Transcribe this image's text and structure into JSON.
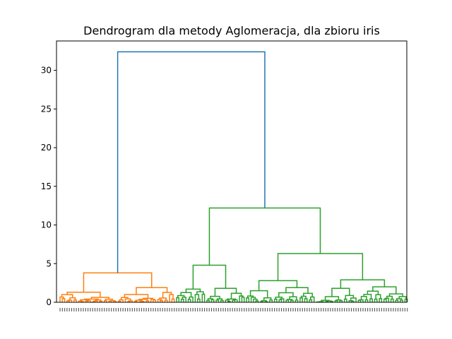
{
  "chart_data": {
    "type": "dendrogram",
    "title": "Dendrogram dla metody Aglomeracja, dla zbioru iris",
    "xlabel": "",
    "ylabel": "",
    "ylim": [
      0,
      33.8
    ],
    "yticks": [
      0,
      5,
      10,
      15,
      20,
      25,
      30
    ],
    "leaf_count": 150,
    "leaf_label_examples": [
      "1",
      "2",
      "3",
      "4",
      "5",
      "6",
      "7",
      "8",
      "9",
      "10"
    ],
    "colors": {
      "root": "#1f77b4",
      "cluster_1": "#ff7f0e",
      "cluster_2": "#2ca02c",
      "axes": "#000000"
    },
    "top_links": [
      {
        "name": "root",
        "height": 32.4,
        "color": "root",
        "left_child": "cluster_1",
        "right_child": "cluster_2"
      },
      {
        "name": "cluster_1",
        "height": 3.8,
        "color": "cluster_1",
        "leaves": [
          0,
          50
        ]
      },
      {
        "name": "cluster_2",
        "height": 12.2,
        "color": "cluster_2",
        "leaves": [
          50,
          150
        ]
      },
      {
        "name": "cluster_2a",
        "height": 4.8,
        "color": "cluster_2",
        "leaves": [
          50,
          80
        ]
      },
      {
        "name": "cluster_2b",
        "height": 6.3,
        "color": "cluster_2",
        "leaves": [
          80,
          150
        ]
      }
    ]
  }
}
